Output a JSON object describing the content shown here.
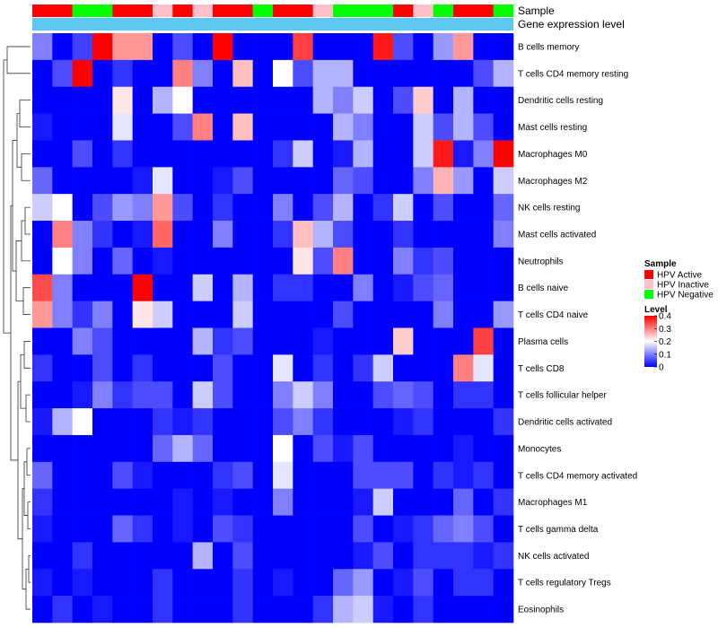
{
  "chart_data": {
    "type": "heatmap",
    "annotation_labels": {
      "sample": "Sample",
      "gene_expression": "Gene expression level"
    },
    "sample_groups": [
      "A",
      "A",
      "N",
      "N",
      "A",
      "A",
      "I",
      "A",
      "I",
      "A",
      "A",
      "N",
      "A",
      "A",
      "I",
      "N",
      "N",
      "N",
      "A",
      "I",
      "N",
      "A",
      "A",
      "N"
    ],
    "rows": [
      {
        "name": "B cells memory",
        "values": [
          0.1,
          0.0,
          0.05,
          0.4,
          0.28,
          0.28,
          0.0,
          0.06,
          0.0,
          0.4,
          0.0,
          0.0,
          0.0,
          0.35,
          0.0,
          0.0,
          0.0,
          0.38,
          0.06,
          0.0,
          0.12,
          0.28,
          0.0,
          0.0
        ]
      },
      {
        "name": "T cells CD4 memory resting",
        "values": [
          0.0,
          0.06,
          0.4,
          0.0,
          0.04,
          0.0,
          0.0,
          0.3,
          0.1,
          0.0,
          0.25,
          0.0,
          0.2,
          0.06,
          0.14,
          0.14,
          0.0,
          0.0,
          0.0,
          0.0,
          0.0,
          0.0,
          0.06,
          0.14
        ]
      },
      {
        "name": "Dendritic cells resting",
        "values": [
          0.0,
          0.0,
          0.0,
          0.0,
          0.22,
          0.0,
          0.14,
          0.2,
          0.0,
          0.0,
          0.0,
          0.0,
          0.0,
          0.0,
          0.14,
          0.1,
          0.16,
          0.0,
          0.06,
          0.24,
          0.0,
          0.14,
          0.0,
          0.0
        ]
      },
      {
        "name": "Mast cells resting",
        "values": [
          0.02,
          0.0,
          0.0,
          0.0,
          0.18,
          0.0,
          0.0,
          0.06,
          0.3,
          0.0,
          0.25,
          0.0,
          0.0,
          0.0,
          0.0,
          0.14,
          0.1,
          0.0,
          0.0,
          0.16,
          0.06,
          0.14,
          0.06,
          0.0
        ]
      },
      {
        "name": "Macrophages M0",
        "values": [
          0.0,
          0.0,
          0.06,
          0.0,
          0.04,
          0.0,
          0.0,
          0.0,
          0.0,
          0.0,
          0.0,
          0.0,
          0.04,
          0.16,
          0.0,
          0.02,
          0.14,
          0.0,
          0.0,
          0.16,
          0.38,
          0.02,
          0.1,
          0.4
        ]
      },
      {
        "name": "Macrophages M2",
        "values": [
          0.08,
          0.0,
          0.0,
          0.0,
          0.0,
          0.02,
          0.18,
          0.0,
          0.0,
          0.02,
          0.06,
          0.0,
          0.0,
          0.0,
          0.0,
          0.08,
          0.06,
          0.0,
          0.0,
          0.1,
          0.26,
          0.12,
          0.0,
          0.16
        ]
      },
      {
        "name": "NK cells resting",
        "values": [
          0.16,
          0.2,
          0.0,
          0.06,
          0.12,
          0.1,
          0.28,
          0.06,
          0.0,
          0.04,
          0.0,
          0.0,
          0.1,
          0.0,
          0.06,
          0.14,
          0.0,
          0.04,
          0.16,
          0.0,
          0.06,
          0.0,
          0.0,
          0.08
        ]
      },
      {
        "name": "Mast cells activated",
        "values": [
          0.0,
          0.3,
          0.1,
          0.04,
          0.0,
          0.02,
          0.32,
          0.0,
          0.0,
          0.1,
          0.0,
          0.0,
          0.04,
          0.25,
          0.14,
          0.06,
          0.0,
          0.0,
          0.04,
          0.0,
          0.0,
          0.0,
          0.0,
          0.1
        ]
      },
      {
        "name": "Neutrophils",
        "values": [
          0.0,
          0.2,
          0.1,
          0.0,
          0.08,
          0.0,
          0.02,
          0.0,
          0.0,
          0.0,
          0.0,
          0.0,
          0.0,
          0.22,
          0.06,
          0.3,
          0.0,
          0.0,
          0.1,
          0.04,
          0.06,
          0.0,
          0.0,
          0.0
        ]
      },
      {
        "name": "B cells naive",
        "values": [
          0.34,
          0.1,
          0.0,
          0.0,
          0.0,
          0.4,
          0.0,
          0.0,
          0.16,
          0.0,
          0.14,
          0.0,
          0.04,
          0.04,
          0.0,
          0.0,
          0.1,
          0.0,
          0.02,
          0.06,
          0.08,
          0.0,
          0.0,
          0.0
        ]
      },
      {
        "name": "T cells CD4 naive",
        "values": [
          0.28,
          0.1,
          0.04,
          0.1,
          0.0,
          0.22,
          0.16,
          0.0,
          0.0,
          0.0,
          0.16,
          0.0,
          0.0,
          0.0,
          0.0,
          0.06,
          0.0,
          0.0,
          0.0,
          0.0,
          0.1,
          0.0,
          0.0,
          0.12
        ]
      },
      {
        "name": "Plasma cells",
        "values": [
          0.0,
          0.0,
          0.1,
          0.06,
          0.0,
          0.0,
          0.0,
          0.0,
          0.14,
          0.04,
          0.06,
          0.0,
          0.0,
          0.0,
          0.02,
          0.0,
          0.0,
          0.0,
          0.24,
          0.0,
          0.0,
          0.0,
          0.35,
          0.0
        ]
      },
      {
        "name": "T cells CD8",
        "values": [
          0.04,
          0.0,
          0.0,
          0.06,
          0.0,
          0.04,
          0.0,
          0.0,
          0.0,
          0.06,
          0.0,
          0.0,
          0.18,
          0.0,
          0.04,
          0.0,
          0.04,
          0.16,
          0.0,
          0.0,
          0.0,
          0.3,
          0.18,
          0.0
        ]
      },
      {
        "name": "T cells follicular helper",
        "values": [
          0.0,
          0.0,
          0.02,
          0.1,
          0.04,
          0.06,
          0.06,
          0.0,
          0.16,
          0.06,
          0.0,
          0.0,
          0.1,
          0.16,
          0.1,
          0.0,
          0.0,
          0.06,
          0.08,
          0.06,
          0.0,
          0.04,
          0.04,
          0.0
        ]
      },
      {
        "name": "Dendritic cells activated",
        "values": [
          0.02,
          0.14,
          0.2,
          0.0,
          0.0,
          0.0,
          0.04,
          0.02,
          0.04,
          0.0,
          0.0,
          0.0,
          0.06,
          0.1,
          0.04,
          0.0,
          0.0,
          0.0,
          0.02,
          0.04,
          0.0,
          0.0,
          0.0,
          0.04
        ]
      },
      {
        "name": "Monocytes",
        "values": [
          0.0,
          0.0,
          0.0,
          0.0,
          0.0,
          0.0,
          0.08,
          0.14,
          0.08,
          0.0,
          0.0,
          0.0,
          0.2,
          0.0,
          0.06,
          0.02,
          0.06,
          0.0,
          0.0,
          0.0,
          0.0,
          0.02,
          0.0,
          0.0
        ]
      },
      {
        "name": "T cells CD4 memory activated",
        "values": [
          0.08,
          0.0,
          0.0,
          0.0,
          0.06,
          0.02,
          0.0,
          0.0,
          0.0,
          0.04,
          0.06,
          0.0,
          0.18,
          0.0,
          0.0,
          0.0,
          0.06,
          0.06,
          0.06,
          0.0,
          0.04,
          0.02,
          0.04,
          0.0
        ]
      },
      {
        "name": "Macrophages M1",
        "values": [
          0.04,
          0.0,
          0.0,
          0.0,
          0.0,
          0.0,
          0.0,
          0.02,
          0.0,
          0.02,
          0.0,
          0.0,
          0.1,
          0.0,
          0.0,
          0.0,
          0.02,
          0.16,
          0.0,
          0.0,
          0.0,
          0.08,
          0.0,
          0.04
        ]
      },
      {
        "name": "T cells gamma delta",
        "values": [
          0.02,
          0.0,
          0.0,
          0.0,
          0.08,
          0.04,
          0.0,
          0.02,
          0.0,
          0.06,
          0.04,
          0.0,
          0.0,
          0.0,
          0.0,
          0.0,
          0.06,
          0.0,
          0.02,
          0.04,
          0.08,
          0.1,
          0.06,
          0.0
        ]
      },
      {
        "name": "NK cells activated",
        "values": [
          0.0,
          0.0,
          0.04,
          0.0,
          0.0,
          0.0,
          0.0,
          0.0,
          0.14,
          0.0,
          0.06,
          0.0,
          0.0,
          0.0,
          0.0,
          0.0,
          0.02,
          0.06,
          0.0,
          0.04,
          0.04,
          0.04,
          0.02,
          0.04
        ]
      },
      {
        "name": "T cells regulatory  Tregs",
        "values": [
          0.02,
          0.0,
          0.02,
          0.0,
          0.0,
          0.0,
          0.04,
          0.0,
          0.0,
          0.0,
          0.04,
          0.0,
          0.02,
          0.0,
          0.0,
          0.08,
          0.12,
          0.0,
          0.02,
          0.06,
          0.0,
          0.04,
          0.04,
          0.0
        ]
      },
      {
        "name": "Eosinophils",
        "values": [
          0.0,
          0.04,
          0.0,
          0.02,
          0.0,
          0.0,
          0.04,
          0.0,
          0.0,
          0.0,
          0.04,
          0.0,
          0.0,
          0.0,
          0.04,
          0.14,
          0.16,
          0.02,
          0.0,
          0.04,
          0.0,
          0.0,
          0.0,
          0.0
        ]
      }
    ],
    "legend_sample": {
      "title": "Sample",
      "items": [
        {
          "key": "A",
          "label": "HPV Active",
          "color": "#ff0000"
        },
        {
          "key": "I",
          "label": "HPV Inactive",
          "color": "#ffc0cb"
        },
        {
          "key": "N",
          "label": "HPV Negative",
          "color": "#00ff00"
        }
      ]
    },
    "legend_level": {
      "title": "Level",
      "range": [
        0,
        0.4
      ],
      "ticks": [
        "0.4",
        "0.3",
        "0.2",
        "0.1",
        "0"
      ],
      "tick_values": [
        0.4,
        0.3,
        0.2,
        0.1,
        0.0
      ],
      "colors": {
        "low": "#0000ff",
        "mid": "#ffffff",
        "high": "#ff0000"
      }
    },
    "gene_expression_color": "#5fc8f0"
  }
}
